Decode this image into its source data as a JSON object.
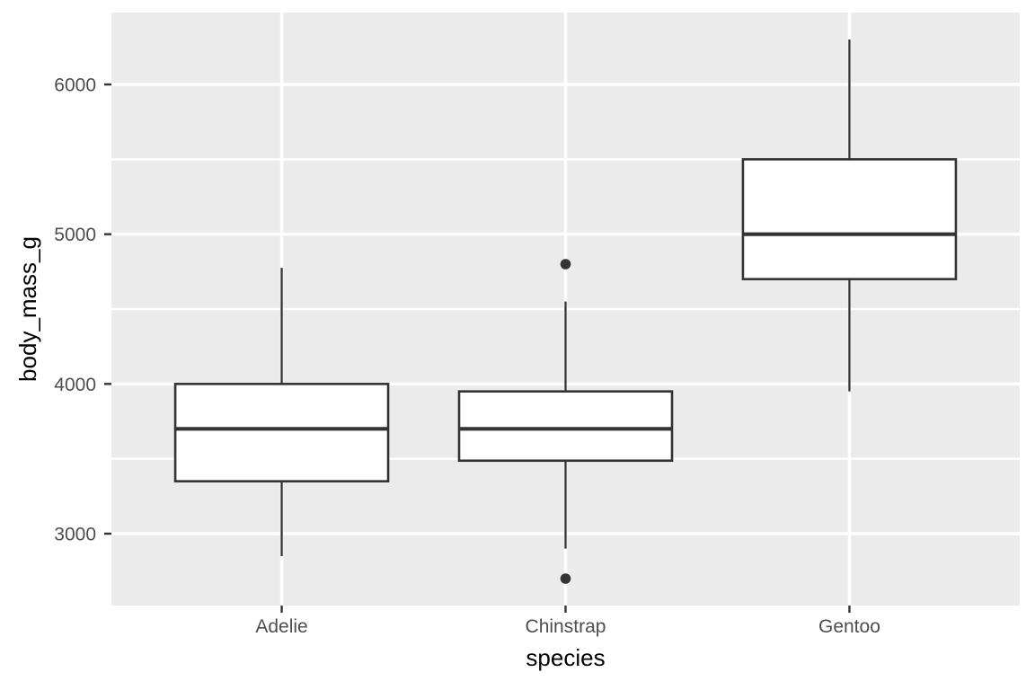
{
  "chart_data": {
    "type": "boxplot",
    "title": "",
    "xlabel": "species",
    "ylabel": "body_mass_g",
    "categories": [
      "Adelie",
      "Chinstrap",
      "Gentoo"
    ],
    "series": [
      {
        "name": "Adelie",
        "lower_whisker": 2850,
        "q1": 3350,
        "median": 3700,
        "q3": 4000,
        "upper_whisker": 4775,
        "outliers": []
      },
      {
        "name": "Chinstrap",
        "lower_whisker": 2900,
        "q1": 3487.5,
        "median": 3700,
        "q3": 3950,
        "upper_whisker": 4550,
        "outliers": [
          2700,
          4800
        ]
      },
      {
        "name": "Gentoo",
        "lower_whisker": 3950,
        "q1": 4700,
        "median": 5000,
        "q3": 5500,
        "upper_whisker": 6300,
        "outliers": []
      }
    ],
    "yticks": [
      3000,
      4000,
      5000,
      6000
    ],
    "ytick_labels": [
      "3000",
      "4000",
      "5000",
      "6000"
    ],
    "yminor": [
      3500,
      4500,
      5500
    ],
    "ylim": [
      2520,
      6480
    ],
    "grid": true,
    "legend": "none",
    "colors": {
      "outer_bg": "#ffffff",
      "panel_bg": "#ebebeb",
      "grid": "#ffffff",
      "box_stroke": "#333333",
      "box_fill": "#ffffff",
      "outlier": "#333333",
      "tick_mark": "#333333",
      "tick_text": "#4d4d4d",
      "axis_title": "#000000"
    }
  }
}
